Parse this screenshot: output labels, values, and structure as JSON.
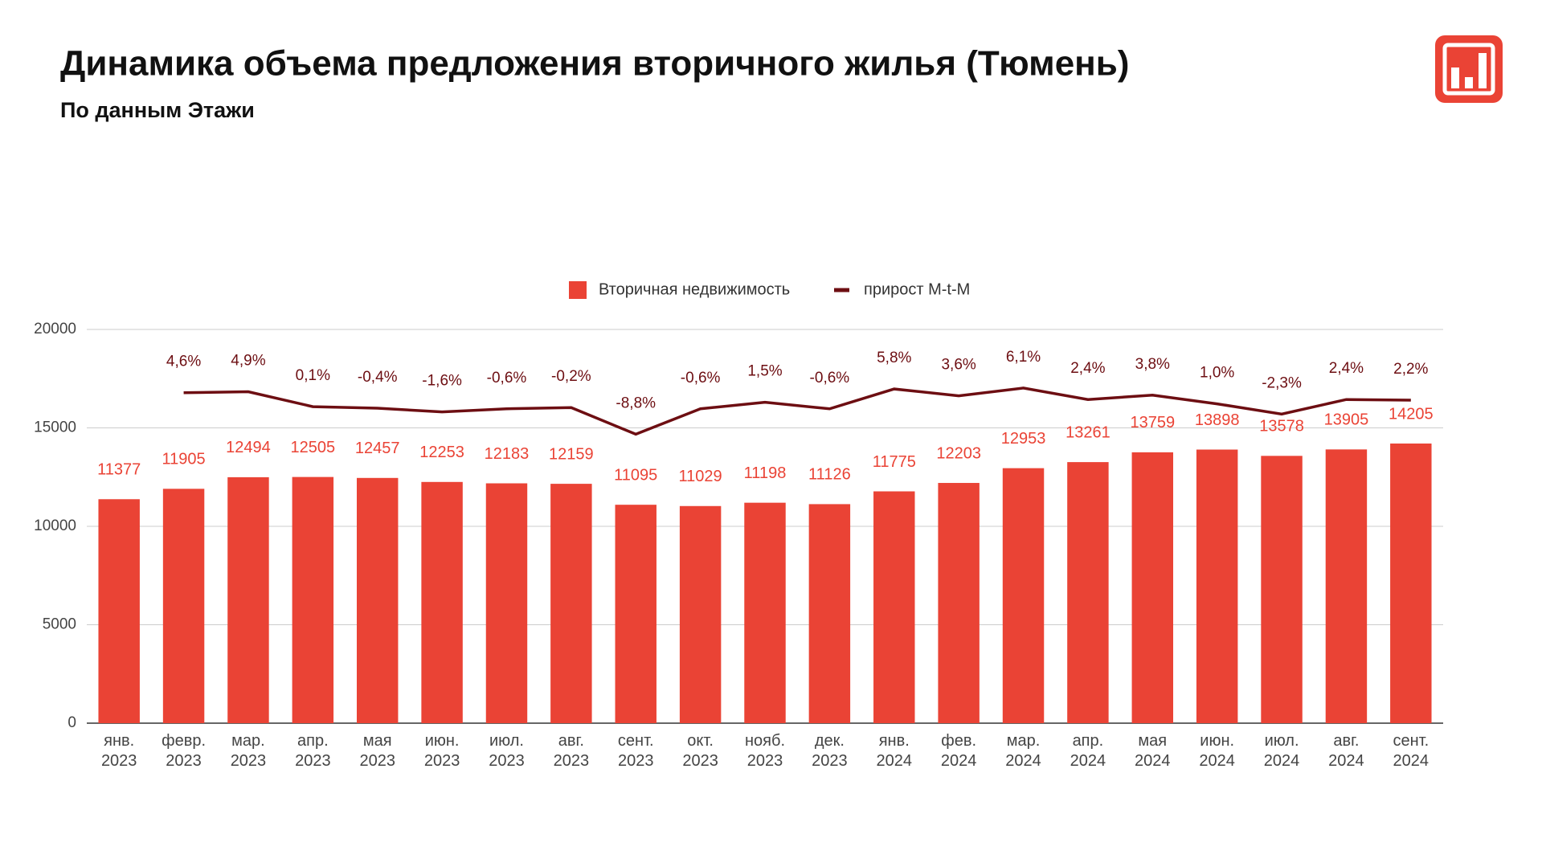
{
  "chart_data": {
    "type": "bar",
    "title": "Динамика объема предложения вторичного жилья (Тюмень)",
    "subtitle": "По данным Этажи",
    "categories": [
      "янв.\n2023",
      "февр.\n2023",
      "мар.\n2023",
      "апр.\n2023",
      "мая\n2023",
      "июн.\n2023",
      "июл.\n2023",
      "авг.\n2023",
      "сент.\n2023",
      "окт.\n2023",
      "нояб.\n2023",
      "дек.\n2023",
      "янв.\n2024",
      "фев.\n2024",
      "мар.\n2024",
      "апр.\n2024",
      "мая\n2024",
      "июн.\n2024",
      "июл.\n2024",
      "авг.\n2024",
      "сент.\n2024"
    ],
    "series": [
      {
        "name": "Вторичная недвижимость",
        "type": "bar",
        "color": "#ea4335",
        "values": [
          11377,
          11905,
          12494,
          12505,
          12457,
          12253,
          12183,
          12159,
          11095,
          11029,
          11198,
          11126,
          11775,
          12203,
          12953,
          13261,
          13759,
          13898,
          13578,
          13905,
          14205
        ]
      },
      {
        "name": "прирост M-t-M",
        "type": "line",
        "axis": "y2",
        "color": "#6d0e12",
        "values": [
          null,
          4.6,
          4.9,
          0.1,
          -0.4,
          -1.6,
          -0.6,
          -0.2,
          -8.8,
          -0.6,
          1.5,
          -0.6,
          5.8,
          3.6,
          6.1,
          2.4,
          3.8,
          1.0,
          -2.3,
          2.4,
          2.2
        ],
        "value_labels": [
          null,
          "4,6%",
          "4,9%",
          "0,1%",
          "-0,4%",
          "-1,6%",
          "-0,6%",
          "-0,2%",
          "-8,8%",
          "-0,6%",
          "1,5%",
          "-0,6%",
          "5,8%",
          "3,6%",
          "6,1%",
          "2,4%",
          "3,8%",
          "1,0%",
          "-2,3%",
          "2,4%",
          "2,2%"
        ]
      }
    ],
    "ylim": [
      0,
      20000
    ],
    "yticks": [
      0,
      5000,
      10000,
      15000,
      20000
    ],
    "y2lim": [
      -102,
      25
    ],
    "grid": true,
    "legend": "top"
  }
}
